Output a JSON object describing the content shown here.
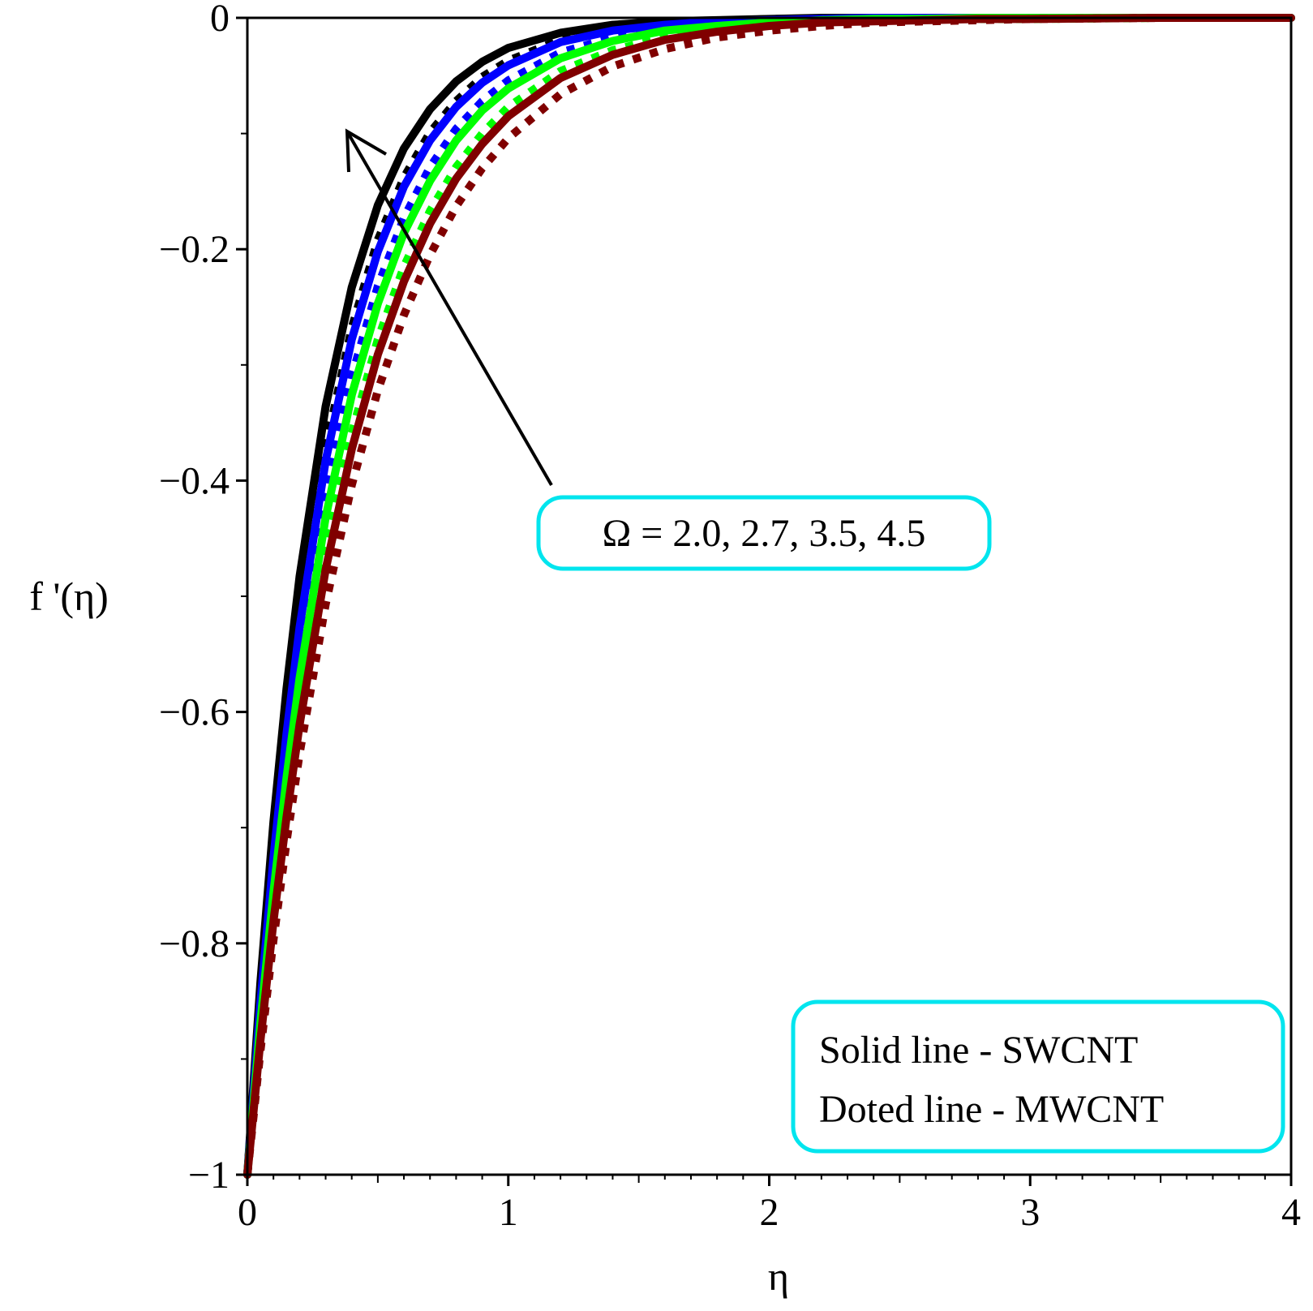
{
  "chart_data": {
    "type": "line",
    "title": "",
    "xlabel": "η",
    "ylabel": "f '(η)",
    "xlim": [
      0,
      4
    ],
    "ylim": [
      -1,
      0
    ],
    "x_ticks": [
      "0",
      "1",
      "2",
      "3",
      "4"
    ],
    "y_ticks": [
      "0",
      "−0.2",
      "−0.4",
      "−0.6",
      "−0.8",
      "−1"
    ],
    "grid": false,
    "x": [
      0,
      0.05,
      0.1,
      0.15,
      0.2,
      0.3,
      0.4,
      0.5,
      0.6,
      0.7,
      0.8,
      0.9,
      1.0,
      1.2,
      1.4,
      1.6,
      1.8,
      2.0,
      2.2,
      2.4,
      2.6,
      2.8,
      3.0,
      3.5,
      4.0
    ],
    "series": [
      {
        "color": "#000000",
        "style": "solid",
        "values": [
          -1.0,
          -0.834,
          -0.695,
          -0.58,
          -0.483,
          -0.336,
          -0.233,
          -0.162,
          -0.113,
          -0.079,
          -0.055,
          -0.038,
          -0.026,
          -0.013,
          -0.006,
          -0.003,
          -0.002,
          -0.001,
          0.0,
          0.0,
          0.0,
          0.0,
          0.0,
          0.0,
          0.0
        ]
      },
      {
        "color": "#000000",
        "style": "dotted",
        "values": [
          -1.0,
          -0.848,
          -0.719,
          -0.61,
          -0.517,
          -0.372,
          -0.268,
          -0.192,
          -0.138,
          -0.099,
          -0.072,
          -0.051,
          -0.037,
          -0.019,
          -0.01,
          -0.005,
          -0.003,
          -0.001,
          -0.001,
          0.0,
          0.0,
          0.0,
          0.0,
          0.0,
          0.0
        ]
      },
      {
        "color": "#0000ff",
        "style": "solid",
        "values": [
          -1.0,
          -0.852,
          -0.726,
          -0.619,
          -0.527,
          -0.383,
          -0.278,
          -0.202,
          -0.146,
          -0.106,
          -0.077,
          -0.056,
          -0.041,
          -0.021,
          -0.011,
          -0.006,
          -0.003,
          -0.002,
          -0.001,
          0.0,
          0.0,
          0.0,
          0.0,
          0.0,
          0.0
        ]
      },
      {
        "color": "#0000ff",
        "style": "dotted",
        "values": [
          -1.0,
          -0.864,
          -0.746,
          -0.645,
          -0.557,
          -0.416,
          -0.31,
          -0.232,
          -0.173,
          -0.129,
          -0.096,
          -0.072,
          -0.054,
          -0.03,
          -0.017,
          -0.009,
          -0.005,
          -0.003,
          -0.002,
          -0.001,
          0.0,
          0.0,
          0.0,
          0.0,
          0.0
        ]
      },
      {
        "color": "#00ff00",
        "style": "solid",
        "values": [
          -1.0,
          -0.869,
          -0.756,
          -0.657,
          -0.571,
          -0.432,
          -0.326,
          -0.247,
          -0.186,
          -0.141,
          -0.106,
          -0.08,
          -0.061,
          -0.035,
          -0.02,
          -0.011,
          -0.007,
          -0.004,
          -0.002,
          -0.001,
          -0.001,
          0.0,
          0.0,
          0.0,
          0.0
        ]
      },
      {
        "color": "#00ff00",
        "style": "dotted",
        "values": [
          -1.0,
          -0.88,
          -0.774,
          -0.681,
          -0.6,
          -0.464,
          -0.359,
          -0.278,
          -0.215,
          -0.167,
          -0.129,
          -0.1,
          -0.077,
          -0.046,
          -0.028,
          -0.017,
          -0.01,
          -0.006,
          -0.004,
          -0.002,
          -0.001,
          -0.001,
          -0.001,
          0.0,
          0.0
        ]
      },
      {
        "color": "#800000",
        "style": "solid",
        "values": [
          -1.0,
          -0.884,
          -0.781,
          -0.691,
          -0.611,
          -0.477,
          -0.373,
          -0.291,
          -0.228,
          -0.178,
          -0.139,
          -0.109,
          -0.085,
          -0.052,
          -0.032,
          -0.019,
          -0.012,
          -0.007,
          -0.004,
          -0.003,
          -0.002,
          -0.001,
          -0.001,
          0.0,
          0.0
        ]
      },
      {
        "color": "#800000",
        "style": "dotted",
        "values": [
          -1.0,
          -0.893,
          -0.797,
          -0.712,
          -0.636,
          -0.507,
          -0.404,
          -0.322,
          -0.257,
          -0.205,
          -0.163,
          -0.13,
          -0.104,
          -0.066,
          -0.042,
          -0.027,
          -0.017,
          -0.011,
          -0.007,
          -0.004,
          -0.003,
          -0.002,
          -0.001,
          0.0,
          0.0
        ]
      }
    ],
    "annotations": {
      "arrow_label": "Ω = 2.0, 2.7, 3.5, 4.5",
      "legend_line1": "Solid line - SWCNT",
      "legend_line2": "Doted line - MWCNT",
      "box_color": "#00e5ee",
      "legend_placement": "bottom-right"
    }
  }
}
